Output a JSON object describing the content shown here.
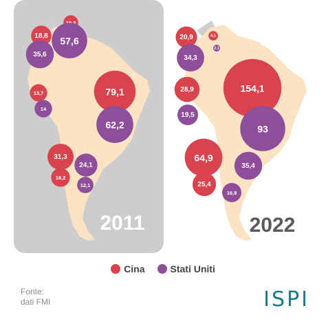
{
  "colors": {
    "cina": "#d9434e",
    "stati_uniti": "#8f4e9a",
    "land": "#fbe3c4",
    "other_land": "#cfcfcf",
    "panel_2011": "#cdcdcd",
    "year_2011": "#ffffff",
    "year_2022": "#5b5b5b"
  },
  "maps": [
    {
      "year": "2011",
      "bubbles": [
        {
          "country": "Colombia",
          "series": "Cina",
          "label": "10,2",
          "value": 10.2
        },
        {
          "country": "Venezuela",
          "series": "Cina",
          "label": "18,8",
          "value": 18.8
        },
        {
          "country": "Venezuela",
          "series": "Stati Uniti",
          "label": "57,6",
          "value": 57.6
        },
        {
          "country": "Colombia",
          "series": "Stati Uniti",
          "label": "35,6",
          "value": 35.6
        },
        {
          "country": "Peru",
          "series": "Cina",
          "label": "13,7",
          "value": 13.7
        },
        {
          "country": "Peru",
          "series": "Stati Uniti",
          "label": "14",
          "value": 14
        },
        {
          "country": "Brasile",
          "series": "Cina",
          "label": "79,1",
          "value": 79.1
        },
        {
          "country": "Brasile",
          "series": "Stati Uniti",
          "label": "62,2",
          "value": 62.2
        },
        {
          "country": "Cile",
          "series": "Cina",
          "label": "31,3",
          "value": 31.3
        },
        {
          "country": "Cile",
          "series": "Stati Uniti",
          "label": "24,1",
          "value": 24.1
        },
        {
          "country": "Argentina",
          "series": "Cina",
          "label": "16,2",
          "value": 16.2
        },
        {
          "country": "Argentina",
          "series": "Stati Uniti",
          "label": "12,1",
          "value": 12.1
        }
      ]
    },
    {
      "year": "2022",
      "bubbles": [
        {
          "country": "Colombia",
          "series": "Cina",
          "label": "20,9",
          "value": 20.9
        },
        {
          "country": "Venezuela",
          "series": "Cina",
          "label": "4,1",
          "value": 4.1
        },
        {
          "country": "Venezuela",
          "series": "Stati Uniti",
          "label": "2,1",
          "value": 2.1
        },
        {
          "country": "Colombia",
          "series": "Stati Uniti",
          "label": "34,3",
          "value": 34.3
        },
        {
          "country": "Peru",
          "series": "Cina",
          "label": "28,9",
          "value": 28.9
        },
        {
          "country": "Peru",
          "series": "Stati Uniti",
          "label": "19,5",
          "value": 19.5
        },
        {
          "country": "Brasile",
          "series": "Cina",
          "label": "154,1",
          "value": 154.1
        },
        {
          "country": "Brasile",
          "series": "Stati Uniti",
          "label": "93",
          "value": 93
        },
        {
          "country": "Cile",
          "series": "Cina",
          "label": "64,9",
          "value": 64.9
        },
        {
          "country": "Cile",
          "series": "Stati Uniti",
          "label": "35,4",
          "value": 35.4
        },
        {
          "country": "Argentina",
          "series": "Cina",
          "label": "25,4",
          "value": 25.4
        },
        {
          "country": "Argentina",
          "series": "Stati Uniti",
          "label": "16,9",
          "value": 16.9
        }
      ]
    }
  ],
  "legend": [
    {
      "key": "cina",
      "label": "Cina"
    },
    {
      "key": "stati_uniti",
      "label": "Stati Uniti"
    }
  ],
  "source": {
    "line1": "Fonte:",
    "line2": "dati FMI"
  },
  "logo": "ISPI"
}
